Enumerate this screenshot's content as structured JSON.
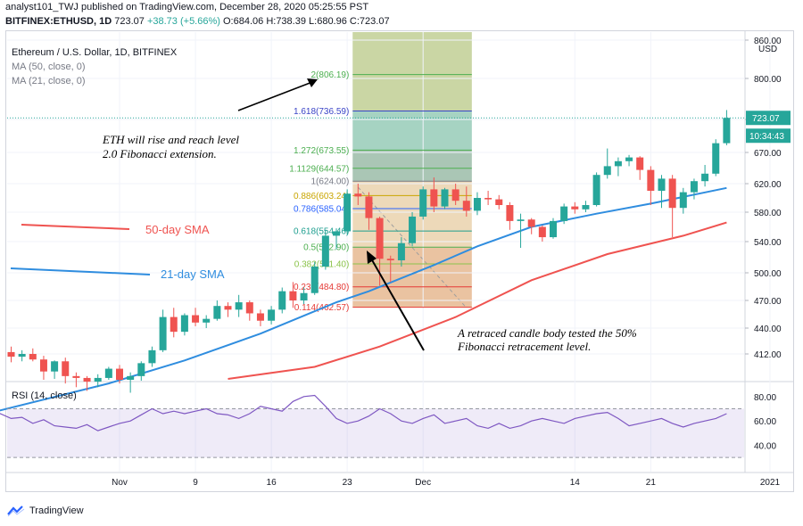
{
  "header": {
    "line1": "analyst101_TWJ published on TradingView.com, December 28, 2020 05:25:55 PST",
    "symbol": "BITFINEX:ETHUSD, 1D",
    "last": "723.07",
    "change": "+38.73 (+5.66%)",
    "o": "O:684.06",
    "h": "H:738.39",
    "l": "L:680.96",
    "c": "C:723.07"
  },
  "legend": {
    "title": "Ethereum / U.S. Dollar, 1D, BITFINEX",
    "ma50": "MA (50, close, 0)",
    "ma21": "MA (21, close, 0)"
  },
  "axis": {
    "currency": "USD",
    "price_ticks": [
      "860.00",
      "800.00",
      "720.00",
      "670.00",
      "620.00",
      "580.00",
      "540.00",
      "500.00",
      "470.00",
      "440.00",
      "412.00"
    ],
    "rsi_ticks": [
      "80.00",
      "60.00",
      "40.00"
    ],
    "date_ticks": [
      "Nov",
      "9",
      "16",
      "23",
      "Dec",
      "14",
      "21",
      "2021"
    ],
    "last_price_label": "723.07",
    "countdown_label": "10:34:43"
  },
  "fib_levels": [
    {
      "label": "2(806.19)",
      "value": 806.19,
      "color": "#4caf50"
    },
    {
      "label": "1.618(736.59)",
      "value": 736.59,
      "color": "#3a44c7"
    },
    {
      "label": "1.272(673.55)",
      "value": 673.55,
      "color": "#4caf50"
    },
    {
      "label": "1.1129(644.57)",
      "value": 644.57,
      "color": "#4caf50"
    },
    {
      "label": "1(624.00)",
      "value": 624.0,
      "color": "#787b86"
    },
    {
      "label": "0.886(603.24)",
      "value": 603.24,
      "color": "#c9a500"
    },
    {
      "label": "0.786(585.04)",
      "value": 585.04,
      "color": "#2962ff"
    },
    {
      "label": "0.618(554.46)",
      "value": 554.46,
      "color": "#1e9e8f"
    },
    {
      "label": "0.5(532.90)",
      "value": 532.9,
      "color": "#4caf50"
    },
    {
      "label": "0.382(511.40)",
      "value": 511.4,
      "color": "#8bc34a"
    },
    {
      "label": "0.236(484.80)",
      "value": 484.8,
      "color": "#e53935"
    },
    {
      "label": "0.114(462.57)",
      "value": 462.57,
      "color": "#e53935"
    }
  ],
  "annotations": {
    "eth_note_1": "ETH will rise and reach level",
    "eth_note_2": "2.0 Fibonacci extension.",
    "sma50_label": "50-day SMA",
    "sma21_label": "21-day SMA",
    "retrace_note_1": "A retraced candle body tested the 50%",
    "retrace_note_2": "Fibonacci retracement level."
  },
  "rsi": {
    "label": "RSI (14, close)",
    "upper": 70,
    "lower": 30
  },
  "footer": {
    "brand": "TradingView"
  },
  "colors": {
    "up": "#26a69a",
    "down": "#ef5350",
    "sma50": "#ef5350",
    "sma21": "#2f8ddf",
    "rsi": "#7e57c2"
  },
  "chart_data": {
    "type": "candlestick",
    "title": "Ethereum / U.S. Dollar, 1D, BITFINEX",
    "candles": [
      {
        "date": "2020-10-20",
        "o": 377,
        "h": 385,
        "l": 364,
        "c": 368
      },
      {
        "date": "2020-10-21",
        "o": 368,
        "h": 395,
        "l": 366,
        "c": 392
      },
      {
        "date": "2020-10-22",
        "o": 392,
        "h": 418,
        "l": 390,
        "c": 414
      },
      {
        "date": "2020-10-23",
        "o": 414,
        "h": 420,
        "l": 403,
        "c": 409
      },
      {
        "date": "2020-10-24",
        "o": 409,
        "h": 416,
        "l": 404,
        "c": 412
      },
      {
        "date": "2020-10-25",
        "o": 412,
        "h": 418,
        "l": 404,
        "c": 406
      },
      {
        "date": "2020-10-26",
        "o": 406,
        "h": 410,
        "l": 384,
        "c": 393
      },
      {
        "date": "2020-10-27",
        "o": 393,
        "h": 405,
        "l": 385,
        "c": 404
      },
      {
        "date": "2020-10-28",
        "o": 404,
        "h": 408,
        "l": 380,
        "c": 388
      },
      {
        "date": "2020-10-29",
        "o": 388,
        "h": 392,
        "l": 376,
        "c": 386
      },
      {
        "date": "2020-10-30",
        "o": 386,
        "h": 388,
        "l": 372,
        "c": 382
      },
      {
        "date": "2020-10-31",
        "o": 382,
        "h": 390,
        "l": 376,
        "c": 386
      },
      {
        "date": "2020-11-01",
        "o": 386,
        "h": 398,
        "l": 384,
        "c": 396
      },
      {
        "date": "2020-11-02",
        "o": 396,
        "h": 400,
        "l": 380,
        "c": 384
      },
      {
        "date": "2020-11-03",
        "o": 384,
        "h": 392,
        "l": 370,
        "c": 388
      },
      {
        "date": "2020-11-04",
        "o": 388,
        "h": 404,
        "l": 383,
        "c": 402
      },
      {
        "date": "2020-11-05",
        "o": 402,
        "h": 420,
        "l": 398,
        "c": 416
      },
      {
        "date": "2020-11-06",
        "o": 416,
        "h": 460,
        "l": 414,
        "c": 452
      },
      {
        "date": "2020-11-07",
        "o": 452,
        "h": 462,
        "l": 430,
        "c": 436
      },
      {
        "date": "2020-11-08",
        "o": 436,
        "h": 456,
        "l": 432,
        "c": 454
      },
      {
        "date": "2020-11-09",
        "o": 454,
        "h": 462,
        "l": 442,
        "c": 446
      },
      {
        "date": "2020-11-10",
        "o": 446,
        "h": 454,
        "l": 440,
        "c": 450
      },
      {
        "date": "2020-11-11",
        "o": 450,
        "h": 470,
        "l": 448,
        "c": 464
      },
      {
        "date": "2020-11-12",
        "o": 464,
        "h": 468,
        "l": 452,
        "c": 460
      },
      {
        "date": "2020-11-13",
        "o": 460,
        "h": 476,
        "l": 452,
        "c": 468
      },
      {
        "date": "2020-11-14",
        "o": 468,
        "h": 470,
        "l": 448,
        "c": 456
      },
      {
        "date": "2020-11-15",
        "o": 456,
        "h": 460,
        "l": 442,
        "c": 448
      },
      {
        "date": "2020-11-16",
        "o": 448,
        "h": 464,
        "l": 444,
        "c": 460
      },
      {
        "date": "2020-11-17",
        "o": 460,
        "h": 484,
        "l": 456,
        "c": 480
      },
      {
        "date": "2020-11-18",
        "o": 480,
        "h": 490,
        "l": 462,
        "c": 470
      },
      {
        "date": "2020-11-19",
        "o": 470,
        "h": 484,
        "l": 466,
        "c": 478
      },
      {
        "date": "2020-11-20",
        "o": 478,
        "h": 514,
        "l": 476,
        "c": 508
      },
      {
        "date": "2020-11-21",
        "o": 508,
        "h": 556,
        "l": 504,
        "c": 548
      },
      {
        "date": "2020-11-22",
        "o": 548,
        "h": 558,
        "l": 530,
        "c": 554
      },
      {
        "date": "2020-11-23",
        "o": 554,
        "h": 612,
        "l": 550,
        "c": 606
      },
      {
        "date": "2020-11-24",
        "o": 606,
        "h": 620,
        "l": 590,
        "c": 602
      },
      {
        "date": "2020-11-25",
        "o": 602,
        "h": 608,
        "l": 556,
        "c": 572
      },
      {
        "date": "2020-11-26",
        "o": 572,
        "h": 574,
        "l": 486,
        "c": 518
      },
      {
        "date": "2020-11-27",
        "o": 518,
        "h": 522,
        "l": 490,
        "c": 516
      },
      {
        "date": "2020-11-28",
        "o": 516,
        "h": 546,
        "l": 508,
        "c": 538
      },
      {
        "date": "2020-11-29",
        "o": 538,
        "h": 580,
        "l": 534,
        "c": 574
      },
      {
        "date": "2020-11-30",
        "o": 574,
        "h": 616,
        "l": 570,
        "c": 612
      },
      {
        "date": "2020-12-01",
        "o": 612,
        "h": 630,
        "l": 580,
        "c": 588
      },
      {
        "date": "2020-12-02",
        "o": 588,
        "h": 614,
        "l": 584,
        "c": 612
      },
      {
        "date": "2020-12-03",
        "o": 612,
        "h": 620,
        "l": 590,
        "c": 596
      },
      {
        "date": "2020-12-04",
        "o": 596,
        "h": 616,
        "l": 574,
        "c": 582
      },
      {
        "date": "2020-12-05",
        "o": 582,
        "h": 608,
        "l": 576,
        "c": 600
      },
      {
        "date": "2020-12-06",
        "o": 600,
        "h": 610,
        "l": 590,
        "c": 598
      },
      {
        "date": "2020-12-07",
        "o": 598,
        "h": 604,
        "l": 584,
        "c": 590
      },
      {
        "date": "2020-12-08",
        "o": 590,
        "h": 594,
        "l": 556,
        "c": 568
      },
      {
        "date": "2020-12-09",
        "o": 568,
        "h": 578,
        "l": 532,
        "c": 570
      },
      {
        "date": "2020-12-10",
        "o": 570,
        "h": 572,
        "l": 550,
        "c": 560
      },
      {
        "date": "2020-12-11",
        "o": 560,
        "h": 562,
        "l": 540,
        "c": 546
      },
      {
        "date": "2020-12-12",
        "o": 546,
        "h": 572,
        "l": 544,
        "c": 568
      },
      {
        "date": "2020-12-13",
        "o": 568,
        "h": 592,
        "l": 564,
        "c": 588
      },
      {
        "date": "2020-12-14",
        "o": 588,
        "h": 594,
        "l": 578,
        "c": 584
      },
      {
        "date": "2020-12-15",
        "o": 584,
        "h": 596,
        "l": 580,
        "c": 590
      },
      {
        "date": "2020-12-16",
        "o": 590,
        "h": 638,
        "l": 588,
        "c": 634
      },
      {
        "date": "2020-12-17",
        "o": 634,
        "h": 676,
        "l": 628,
        "c": 648
      },
      {
        "date": "2020-12-18",
        "o": 648,
        "h": 662,
        "l": 632,
        "c": 656
      },
      {
        "date": "2020-12-19",
        "o": 656,
        "h": 666,
        "l": 648,
        "c": 662
      },
      {
        "date": "2020-12-20",
        "o": 662,
        "h": 664,
        "l": 626,
        "c": 642
      },
      {
        "date": "2020-12-21",
        "o": 642,
        "h": 648,
        "l": 590,
        "c": 610
      },
      {
        "date": "2020-12-22",
        "o": 610,
        "h": 634,
        "l": 586,
        "c": 628
      },
      {
        "date": "2020-12-23",
        "o": 628,
        "h": 634,
        "l": 546,
        "c": 586
      },
      {
        "date": "2020-12-24",
        "o": 586,
        "h": 614,
        "l": 578,
        "c": 608
      },
      {
        "date": "2020-12-25",
        "o": 608,
        "h": 628,
        "l": 598,
        "c": 624
      },
      {
        "date": "2020-12-26",
        "o": 624,
        "h": 650,
        "l": 616,
        "c": 636
      },
      {
        "date": "2020-12-27",
        "o": 636,
        "h": 690,
        "l": 632,
        "c": 684
      },
      {
        "date": "2020-12-28",
        "o": 684.06,
        "h": 738.39,
        "l": 680.96,
        "c": 723.07
      }
    ],
    "sma21": [
      {
        "date": "2020-10-21",
        "v": 348
      },
      {
        "date": "2020-11-01",
        "v": 380
      },
      {
        "date": "2020-11-08",
        "v": 405
      },
      {
        "date": "2020-11-15",
        "v": 434
      },
      {
        "date": "2020-11-22",
        "v": 468
      },
      {
        "date": "2020-11-25",
        "v": 480
      },
      {
        "date": "2020-12-01",
        "v": 510
      },
      {
        "date": "2020-12-05",
        "v": 534
      },
      {
        "date": "2020-12-10",
        "v": 560
      },
      {
        "date": "2020-12-16",
        "v": 578
      },
      {
        "date": "2020-12-21",
        "v": 592
      },
      {
        "date": "2020-12-28",
        "v": 614
      }
    ],
    "sma50": [
      {
        "date": "2020-11-12",
        "v": 385
      },
      {
        "date": "2020-11-20",
        "v": 398
      },
      {
        "date": "2020-11-26",
        "v": 420
      },
      {
        "date": "2020-12-03",
        "v": 452
      },
      {
        "date": "2020-12-10",
        "v": 492
      },
      {
        "date": "2020-12-17",
        "v": 524
      },
      {
        "date": "2020-12-24",
        "v": 548
      },
      {
        "date": "2020-12-28",
        "v": 566
      }
    ],
    "rsi_values": [
      62,
      67,
      66,
      62,
      63,
      58,
      61,
      56,
      55,
      54,
      57,
      52,
      55,
      58,
      60,
      65,
      70,
      66,
      68,
      66,
      68,
      70,
      66,
      65,
      62,
      66,
      72,
      70,
      68,
      76,
      80,
      81,
      72,
      62,
      58,
      60,
      64,
      70,
      66,
      60,
      58,
      62,
      65,
      58,
      60,
      62,
      56,
      54,
      58,
      54,
      56,
      60,
      62,
      60,
      58,
      62,
      64,
      66,
      67,
      62,
      56,
      58,
      60,
      62,
      58,
      55,
      58,
      60,
      62,
      66
    ],
    "ylim": [
      400,
      870
    ],
    "rsi_ylim": [
      25,
      85
    ]
  }
}
